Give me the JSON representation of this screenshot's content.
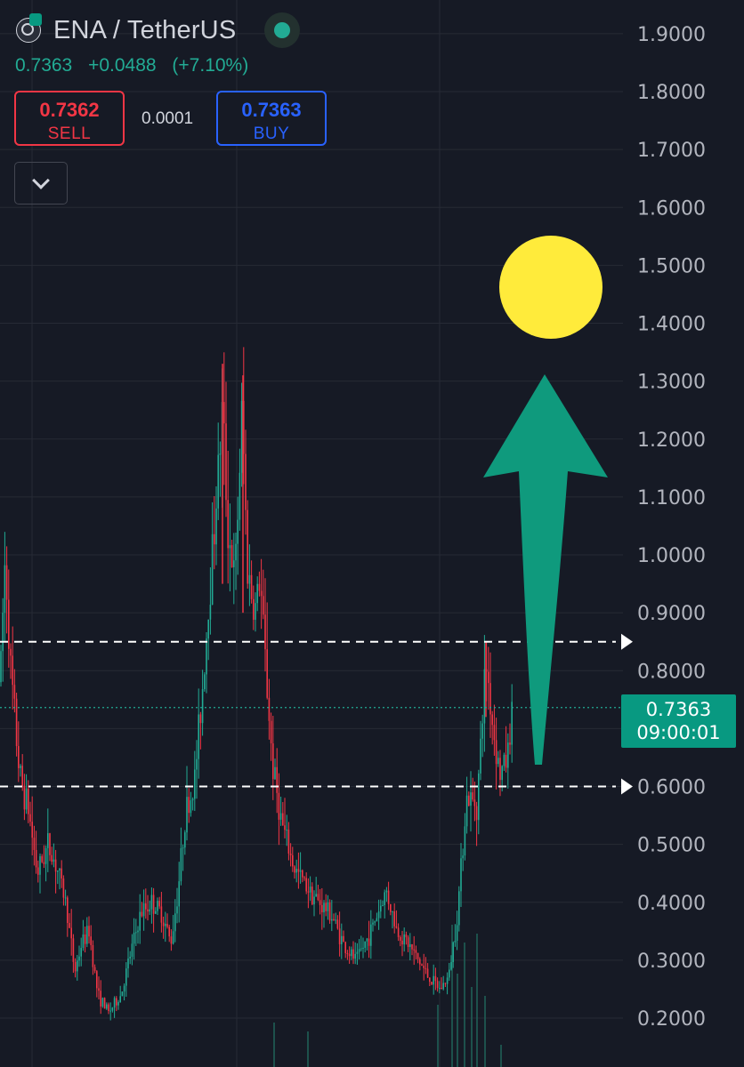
{
  "header": {
    "symbol": "ENA / TetherUS",
    "last_price": "0.7363",
    "change": "+0.0488",
    "change_pct": "(+7.10%)",
    "sell": {
      "price": "0.7362",
      "label": "SELL"
    },
    "spread": "0.0001",
    "buy": {
      "price": "0.7363",
      "label": "BUY"
    }
  },
  "price_tag": {
    "price": "0.7363",
    "countdown": "09:00:01"
  },
  "colors": {
    "background": "#161a25",
    "up": "#22ab94",
    "down": "#f23645",
    "buy_blue": "#2962ff",
    "arrow": "#0f9a7d",
    "sun": "#ffeb3b",
    "grid": "#262a35",
    "dashed_lines": "#ffffff"
  },
  "icons": [
    "exchange-logo-icon",
    "live-status-icon",
    "chevron-down-icon",
    "right-triangle-marker-icon"
  ],
  "chart_data": {
    "type": "candlestick",
    "title": "",
    "y_axis": {
      "position": "right",
      "range": [
        0.15,
        1.95
      ],
      "ticks": [
        1.9,
        1.8,
        1.7,
        1.6,
        1.5,
        1.4,
        1.3,
        1.2,
        1.1,
        1.0,
        0.9,
        0.8,
        0.6,
        0.5,
        0.4,
        0.3,
        0.2
      ],
      "tick_labels": [
        "1.9000",
        "1.8000",
        "1.7000",
        "1.6000",
        "1.5000",
        "1.4000",
        "1.3000",
        "1.2000",
        "1.1000",
        "1.0000",
        "0.9000",
        "0.8000",
        "0.6000",
        "0.5000",
        "0.4000",
        "0.3000",
        "0.2000"
      ]
    },
    "grid": true,
    "current_price": 0.7363,
    "horizontal_levels": [
      0.85,
      0.6
    ],
    "annotations": [
      {
        "type": "arrow",
        "direction": "up",
        "color": "#0f9a7d",
        "from_price": 0.6,
        "to_price": 1.3
      },
      {
        "type": "circle",
        "color": "#ffeb3b",
        "at_price": 1.46
      }
    ],
    "price_path": [
      [
        0,
        0.78
      ],
      [
        6,
        1.0
      ],
      [
        12,
        0.8
      ],
      [
        22,
        0.62
      ],
      [
        32,
        0.56
      ],
      [
        42,
        0.45
      ],
      [
        54,
        0.5
      ],
      [
        64,
        0.46
      ],
      [
        74,
        0.4
      ],
      [
        84,
        0.28
      ],
      [
        92,
        0.33
      ],
      [
        100,
        0.35
      ],
      [
        110,
        0.24
      ],
      [
        122,
        0.21
      ],
      [
        136,
        0.24
      ],
      [
        148,
        0.32
      ],
      [
        158,
        0.38
      ],
      [
        170,
        0.4
      ],
      [
        182,
        0.38
      ],
      [
        192,
        0.33
      ],
      [
        200,
        0.42
      ],
      [
        208,
        0.55
      ],
      [
        218,
        0.6
      ],
      [
        228,
        0.78
      ],
      [
        236,
        0.95
      ],
      [
        244,
        1.12
      ],
      [
        250,
        1.25
      ],
      [
        256,
        1.05
      ],
      [
        264,
        0.95
      ],
      [
        272,
        1.25
      ],
      [
        278,
        0.98
      ],
      [
        286,
        0.9
      ],
      [
        292,
        0.96
      ],
      [
        298,
        0.82
      ],
      [
        306,
        0.64
      ],
      [
        316,
        0.54
      ],
      [
        330,
        0.46
      ],
      [
        344,
        0.43
      ],
      [
        358,
        0.4
      ],
      [
        372,
        0.38
      ],
      [
        388,
        0.32
      ],
      [
        400,
        0.3
      ],
      [
        414,
        0.34
      ],
      [
        424,
        0.38
      ],
      [
        434,
        0.42
      ],
      [
        446,
        0.35
      ],
      [
        458,
        0.33
      ],
      [
        470,
        0.3
      ],
      [
        482,
        0.27
      ],
      [
        494,
        0.25
      ],
      [
        504,
        0.27
      ],
      [
        514,
        0.38
      ],
      [
        524,
        0.58
      ],
      [
        536,
        0.57
      ],
      [
        546,
        0.82
      ],
      [
        554,
        0.7
      ],
      [
        562,
        0.62
      ],
      [
        570,
        0.65
      ],
      [
        576,
        0.7363
      ]
    ]
  }
}
